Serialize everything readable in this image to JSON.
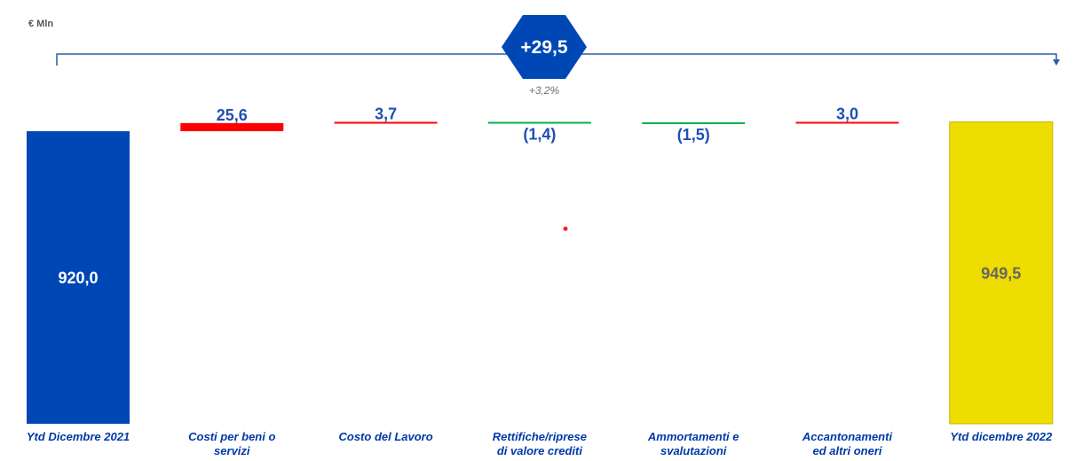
{
  "chart_data": {
    "type": "bar",
    "subtype": "waterfall",
    "unit_label": "€ Mln",
    "categories": [
      [
        "Ytd Dicembre 2021"
      ],
      [
        "Costi per beni o",
        "servizi"
      ],
      [
        "Costo del Lavoro"
      ],
      [
        "Rettifiche/riprese",
        "di valore crediti"
      ],
      [
        "Ammortamenti e",
        "svalutazioni"
      ],
      [
        "Accantonamenti",
        "ed altri oneri"
      ],
      [
        "Ytd dicembre 2022"
      ]
    ],
    "bars": [
      {
        "kind": "total",
        "value": 920.0,
        "label": "920,0",
        "color": "#0047b6",
        "label_color": "#ffffff"
      },
      {
        "kind": "delta",
        "value": 25.6,
        "label": "25,6",
        "color": "#ff0000"
      },
      {
        "kind": "delta",
        "value": 3.7,
        "label": "3,7",
        "color": "#ff0000"
      },
      {
        "kind": "delta",
        "value": -1.4,
        "label": "(1,4)",
        "color": "#00b050"
      },
      {
        "kind": "delta",
        "value": -1.5,
        "label": "(1,5)",
        "color": "#00b050"
      },
      {
        "kind": "delta",
        "value": 3.0,
        "label": "3,0",
        "color": "#ff0000"
      },
      {
        "kind": "total",
        "value": 949.5,
        "label": "949,5",
        "color": "#eedd00",
        "label_color": "#666666"
      }
    ],
    "total_change": {
      "label": "+29,5",
      "percent": "+3,2%",
      "color": "#0047b6"
    },
    "colors": {
      "category_text": "#0039a6",
      "bracket": "#2f5aa8"
    }
  }
}
